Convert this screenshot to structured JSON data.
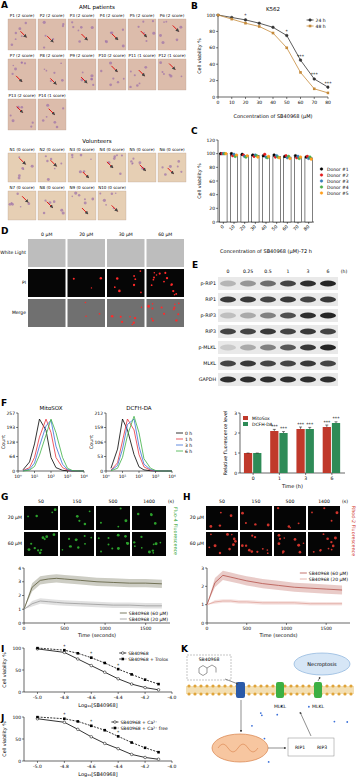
{
  "figure": {
    "panel_A": {
      "letter": "A",
      "patients_title": "AML patients",
      "patients": [
        "P1 (2 score)",
        "P2 (2 score)",
        "P3 (2 score)",
        "P4 (2 score)",
        "P5 (2 score)",
        "P6 (2 score)",
        "P7 (2 score)",
        "P8 (2 score)",
        "P9 (2 score)",
        "P10 (2 score)",
        "P11 (1 score)",
        "P12 (1 score)",
        "P13 (2 score)",
        "P14 (1 score)"
      ],
      "volunteers_title": "Volunteers",
      "volunteers": [
        "N1 (0 score)",
        "N2 (0 score)",
        "N3 (0 score)",
        "N4 (0 score)",
        "N5 (0 score)",
        "N6 (0 score)",
        "N7 (0 score)",
        "N8 (0 score)",
        "N9 (0 score)",
        "N10 (0 score)"
      ]
    },
    "panel_D": {
      "letter": "D",
      "columns": [
        "0 μM",
        "20 μM",
        "30 μM",
        "60 μM"
      ],
      "rows": [
        "White Light",
        "PI",
        "Merge"
      ]
    },
    "panel_E": {
      "letter": "E",
      "times": [
        "0",
        "0.25",
        "0.5",
        "1",
        "3",
        "6"
      ],
      "unit": "(h)",
      "rows": [
        "p-RIP1",
        "RIP1",
        "p-RIP3",
        "RIP3",
        "p-MLKL",
        "MLKL",
        "GAPDH"
      ]
    },
    "panel_G": {
      "letter": "G",
      "times": [
        "50",
        "150",
        "500",
        "1400"
      ],
      "unit": "(s)",
      "rows": [
        "20 μM",
        "60 μM"
      ],
      "label": "Fluo-4 Fluorescence"
    },
    "panel_H": {
      "letter": "H",
      "times": [
        "50",
        "150",
        "500",
        "1400"
      ],
      "unit": "(s)",
      "rows": [
        "20 μM",
        "60 μM"
      ],
      "label": "Rhod-2 Fluorescence"
    },
    "panel_K": {
      "letter": "K",
      "labels": [
        "SB40968",
        "Necroptosis",
        "MLKL",
        "MLKL",
        "RIP1",
        "RIP3"
      ]
    }
  },
  "chart_data": [
    {
      "letter": "B",
      "type": "line",
      "title": "K562",
      "x_label": "Concentration of SB40968 (μM)",
      "y_label": "Cell viability %",
      "x": [
        0,
        10,
        20,
        30,
        40,
        50,
        60,
        70,
        80
      ],
      "xlim": [
        0,
        80
      ],
      "xticks": [
        0,
        10,
        20,
        30,
        40,
        50,
        60,
        70,
        80
      ],
      "ylim": [
        0,
        100
      ],
      "yticks": [
        0,
        20,
        40,
        60,
        80,
        100
      ],
      "legend": "top-right",
      "series": [
        {
          "name": "24 h",
          "color": "#333333",
          "marker": "circle",
          "values": [
            100,
            97,
            94,
            90,
            85,
            75,
            45,
            22,
            12
          ]
        },
        {
          "name": "48 h",
          "color": "#c58a3a",
          "marker": "square",
          "values": [
            100,
            95,
            90,
            86,
            78,
            60,
            30,
            10,
            5
          ],
          "significance": [
            null,
            null,
            "*",
            null,
            null,
            "*",
            "***",
            "***",
            "***"
          ]
        }
      ]
    },
    {
      "letter": "C",
      "type": "bar",
      "x_label": "Concentration of SB40968 (μM)-72 h",
      "y_label": "Cell viability %",
      "categories": [
        "0",
        "10",
        "20",
        "30",
        "40",
        "50",
        "60",
        "70",
        "80"
      ],
      "values": [
        100,
        98,
        97,
        97,
        96,
        96,
        95,
        95,
        94
      ],
      "color": "#ffffff",
      "ylim": [
        0,
        120
      ],
      "yticks": [
        0,
        20,
        40,
        60,
        80,
        100,
        120
      ],
      "legend": "right",
      "series": [
        {
          "name": "Donor #1",
          "type": "scatter",
          "marker": "circle",
          "color": "#000000",
          "values": [
            100,
            100,
            99,
            98,
            97,
            98,
            96,
            97,
            95
          ]
        },
        {
          "name": "Donor #2",
          "type": "scatter",
          "marker": "circle",
          "color": "#e41a1c",
          "values": [
            100,
            97,
            98,
            96,
            99,
            95,
            97,
            94,
            96
          ]
        },
        {
          "name": "Donor #3",
          "type": "scatter",
          "marker": "circle",
          "color": "#377eb8",
          "values": [
            100,
            99,
            96,
            98,
            95,
            97,
            94,
            96,
            93
          ]
        },
        {
          "name": "Donor #4",
          "type": "scatter",
          "marker": "circle",
          "color": "#4daf4a",
          "values": [
            100,
            96,
            95,
            97,
            94,
            95,
            96,
            93,
            95
          ]
        },
        {
          "name": "Donor #5",
          "type": "scatter",
          "marker": "circle",
          "color": "#ff9f1c",
          "values": [
            100,
            98,
            97,
            95,
            96,
            94,
            93,
            95,
            92
          ]
        }
      ]
    },
    {
      "letter": "F",
      "type": "line",
      "title": "MitoSOX",
      "y_label": "Count",
      "log": "x",
      "x": [
        2,
        5,
        10,
        20,
        50,
        100,
        200,
        500,
        1000,
        2000,
        5000,
        10000
      ],
      "xlim": [
        1,
        10000
      ],
      "xticks": [
        {
          "value": 1,
          "label": "10⁰"
        },
        {
          "value": 10,
          "label": "10¹"
        },
        {
          "value": 100,
          "label": "10²"
        },
        {
          "value": 1000,
          "label": "10³"
        },
        {
          "value": 10000,
          "label": "10⁴"
        }
      ],
      "ylim": [
        0,
        257
      ],
      "yticks": [
        0,
        64,
        128,
        193,
        257
      ],
      "series": [
        {
          "name": "0 h",
          "color": "#000000",
          "values": [
            5,
            40,
            120,
            230,
            180,
            60,
            15,
            3,
            1,
            0,
            0,
            0
          ]
        },
        {
          "name": "1 h",
          "color": "#e8303a",
          "values": [
            2,
            15,
            60,
            150,
            230,
            170,
            60,
            15,
            4,
            1,
            0,
            0
          ]
        },
        {
          "name": "3 h",
          "color": "#3a6fd8",
          "values": [
            1,
            8,
            35,
            110,
            200,
            225,
            110,
            30,
            6,
            1,
            0,
            0
          ]
        },
        {
          "name": "6 h",
          "color": "#3cb043",
          "values": [
            0,
            4,
            20,
            70,
            160,
            230,
            170,
            60,
            12,
            2,
            0,
            0
          ]
        }
      ]
    },
    {
      "type": "line",
      "title": "DCFH-DA",
      "y_label": "Count",
      "log": "x",
      "x": [
        2,
        5,
        10,
        20,
        50,
        100,
        200,
        500,
        1000,
        2000,
        5000,
        10000
      ],
      "xlim": [
        1,
        10000
      ],
      "xticks": [
        {
          "value": 1,
          "label": "10⁰"
        },
        {
          "value": 10,
          "label": "10¹"
        },
        {
          "value": 100,
          "label": "10²"
        },
        {
          "value": 1000,
          "label": "10³"
        },
        {
          "value": 10000,
          "label": "10⁴"
        }
      ],
      "ylim": [
        0,
        212
      ],
      "yticks": [
        0,
        53,
        106,
        159,
        212
      ],
      "legend": "right",
      "series": [
        {
          "name": "0 h",
          "color": "#000000",
          "values": [
            10,
            80,
            190,
            150,
            60,
            15,
            4,
            1,
            0,
            0,
            0,
            0
          ]
        },
        {
          "name": "1 h",
          "color": "#e8303a",
          "values": [
            3,
            30,
            110,
            190,
            150,
            60,
            15,
            3,
            1,
            0,
            0,
            0
          ]
        },
        {
          "name": "3 h",
          "color": "#3a6fd8",
          "values": [
            2,
            20,
            80,
            170,
            190,
            90,
            25,
            5,
            1,
            0,
            0,
            0
          ]
        },
        {
          "name": "6 h",
          "color": "#3cb043",
          "values": [
            1,
            10,
            50,
            130,
            200,
            140,
            45,
            10,
            2,
            0,
            0,
            0
          ]
        }
      ]
    },
    {
      "type": "bar",
      "x_label": "Time (h)",
      "y_label": "Relative fluorescence level",
      "categories": [
        "0",
        "1",
        "3",
        "6"
      ],
      "ylim": [
        0,
        3
      ],
      "yticks": [
        0,
        1,
        2,
        3
      ],
      "legend": "top-left",
      "series": [
        {
          "name": "MitoSox",
          "color": "#c0392b",
          "values": [
            1,
            2.1,
            2.2,
            2.3
          ],
          "errors": [
            0,
            0.08,
            0.1,
            0.1
          ],
          "significance": [
            null,
            "***",
            "***",
            "***"
          ]
        },
        {
          "name": "DCFH-DA",
          "color": "#2e8b57",
          "values": [
            1,
            2,
            2.2,
            2.5
          ],
          "errors": [
            0,
            0.07,
            0.08,
            0.06
          ],
          "significance": [
            null,
            "***",
            "***",
            "***"
          ]
        }
      ]
    },
    {
      "type": "line",
      "x_label": "Time (seconds)",
      "x": [
        0,
        100,
        200,
        300,
        400,
        500,
        700,
        900,
        1100,
        1300,
        1500,
        1700
      ],
      "xlim": [
        0,
        1800
      ],
      "xticks": [
        0,
        500,
        1000,
        1500
      ],
      "ylim": [
        0,
        4
      ],
      "yticks": [
        0,
        1,
        2,
        3,
        4
      ],
      "legend": "bottom-right",
      "series": [
        {
          "name": "SB40968 (60 μM)",
          "color": "#5a5a3a",
          "values": [
            1,
            2.6,
            3.1,
            3.2,
            3.25,
            3.2,
            3.1,
            3,
            2.95,
            2.9,
            2.9,
            2.85
          ],
          "errors": [
            0,
            0.3,
            0.3,
            0.3,
            0.3,
            0.3,
            0.3,
            0.3,
            0.3,
            0.3,
            0.3,
            0.3
          ]
        },
        {
          "name": "SB40968 (20 μM)",
          "color": "#9a9a9a",
          "values": [
            1,
            1.4,
            1.6,
            1.55,
            1.5,
            1.45,
            1.4,
            1.35,
            1.3,
            1.3,
            1.25,
            1.25
          ],
          "errors": [
            0,
            0.2,
            0.2,
            0.2,
            0.2,
            0.2,
            0.2,
            0.2,
            0.2,
            0.2,
            0.2,
            0.2
          ]
        }
      ]
    },
    {
      "type": "line",
      "x_label": "Time (seconds)",
      "x": [
        0,
        100,
        200,
        300,
        400,
        500,
        700,
        900,
        1100,
        1300,
        1500,
        1700
      ],
      "xlim": [
        0,
        1800
      ],
      "xticks": [
        0,
        500,
        1000,
        1500
      ],
      "ylim": [
        0,
        3
      ],
      "yticks": [
        0,
        1,
        2,
        3
      ],
      "legend": "top-right",
      "series": [
        {
          "name": "SB40968 (60 μM)",
          "color": "#b5524a",
          "values": [
            1,
            2.2,
            2.6,
            2.5,
            2.4,
            2.3,
            2.15,
            2.05,
            1.95,
            1.9,
            1.85,
            1.8
          ],
          "errors": [
            0,
            0.25,
            0.25,
            0.25,
            0.25,
            0.25,
            0.25,
            0.25,
            0.25,
            0.25,
            0.25,
            0.25
          ]
        },
        {
          "name": "SB40968 (20 μM)",
          "color": "#e0a39a",
          "values": [
            1,
            1.15,
            1.2,
            1.2,
            1.15,
            1.15,
            1.1,
            1.1,
            1.1,
            1.05,
            1.05,
            1.05
          ],
          "errors": [
            0,
            0.1,
            0.1,
            0.1,
            0.1,
            0.1,
            0.1,
            0.1,
            0.1,
            0.1,
            0.1,
            0.1
          ]
        }
      ]
    },
    {
      "letter": "I",
      "type": "line",
      "x_label": "Log₁₀[SB40968]",
      "y_label": "Cell viability %",
      "x": [
        -5,
        -4.8,
        -4.7,
        -4.6,
        -4.5,
        -4.4,
        -4.3,
        -4.2,
        -4.1
      ],
      "xlim": [
        -5.1,
        -4
      ],
      "xticks": [
        {
          "value": -5,
          "label": "-5.0"
        },
        -4.8,
        -4.6,
        -4.4,
        -4.2,
        {
          "value": -4,
          "label": "-4.0"
        }
      ],
      "ylim": [
        0,
        100
      ],
      "yticks": [
        0,
        50,
        100
      ],
      "legend": "top-right",
      "series": [
        {
          "name": "SB40968",
          "color": "#000000",
          "marker": "open-circle",
          "line_style": "solid",
          "values": [
            98,
            90,
            75,
            60,
            45,
            30,
            18,
            10,
            5
          ]
        },
        {
          "name": "SB40968 + Trolox",
          "color": "#000000",
          "marker": "square",
          "line_style": "dashed",
          "values": [
            100,
            95,
            88,
            78,
            66,
            52,
            40,
            28,
            18
          ],
          "significance": [
            null,
            "*",
            null,
            "*",
            null,
            "*",
            null,
            null,
            null
          ]
        }
      ]
    },
    {
      "letter": "J",
      "type": "line",
      "x_label": "Log₁₀[SB40968]",
      "y_label": "Cell viability %",
      "x": [
        -5,
        -4.8,
        -4.7,
        -4.6,
        -4.5,
        -4.4,
        -4.3,
        -4.2,
        -4.1
      ],
      "xlim": [
        -5.1,
        -4
      ],
      "xticks": [
        {
          "value": -5,
          "label": "-5.0"
        },
        -4.8,
        -4.6,
        -4.4,
        -4.2,
        {
          "value": -4,
          "label": "-4.0"
        }
      ],
      "ylim": [
        0,
        100
      ],
      "yticks": [
        0,
        50,
        100
      ],
      "legend": "top-right",
      "series": [
        {
          "name": "SB40968 + Ca²⁺",
          "color": "#000000",
          "marker": "open-circle",
          "line_style": "solid",
          "values": [
            96,
            88,
            72,
            55,
            40,
            28,
            15,
            8,
            4
          ]
        },
        {
          "name": "SB40968 + Ca²⁺ free",
          "color": "#000000",
          "marker": "square",
          "line_style": "dashed",
          "values": [
            100,
            96,
            90,
            80,
            70,
            56,
            42,
            30,
            20
          ],
          "significance": [
            null,
            "*",
            null,
            "*",
            null,
            "*",
            null,
            null,
            null
          ]
        }
      ]
    }
  ]
}
